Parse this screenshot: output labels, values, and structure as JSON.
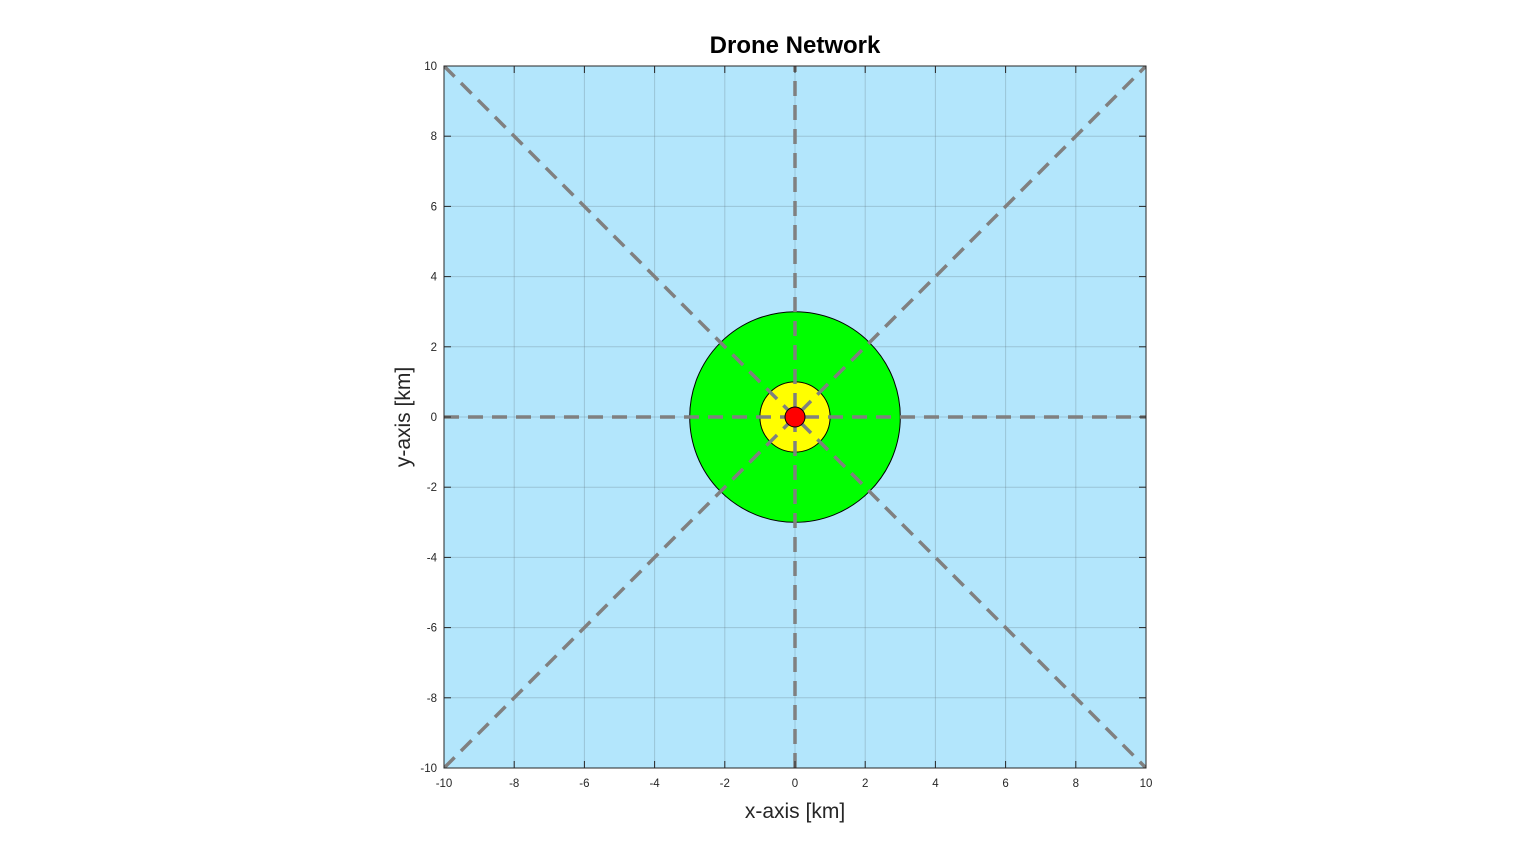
{
  "chart_data": {
    "type": "scatter",
    "title": "Drone Network",
    "xlabel": "x-axis [km]",
    "ylabel": "y-axis [km]",
    "xlim": [
      -10,
      10
    ],
    "ylim": [
      -10,
      10
    ],
    "xticks": [
      "-10",
      "-8",
      "-6",
      "-4",
      "-2",
      "0",
      "2",
      "4",
      "6",
      "8",
      "10"
    ],
    "yticks": [
      "-10",
      "-8",
      "-6",
      "-4",
      "-2",
      "0",
      "2",
      "4",
      "6",
      "8",
      "10"
    ],
    "grid": true,
    "background_color": "#b3e6fc",
    "regions": [
      {
        "shape": "circle",
        "center": [
          0,
          0
        ],
        "radius": 3,
        "color": "#00ff00"
      },
      {
        "shape": "circle",
        "center": [
          0,
          0
        ],
        "radius": 1,
        "color": "#ffff00"
      }
    ],
    "center_point": {
      "x": 0,
      "y": 0,
      "color": "#ff0000"
    },
    "dashed_lines": [
      {
        "from": [
          0,
          -10
        ],
        "to": [
          0,
          10
        ]
      },
      {
        "from": [
          -10,
          0
        ],
        "to": [
          10,
          0
        ]
      },
      {
        "from": [
          -10,
          -10
        ],
        "to": [
          10,
          10
        ]
      },
      {
        "from": [
          -10,
          10
        ],
        "to": [
          10,
          -10
        ]
      }
    ],
    "dashed_line_color": "#808080"
  }
}
